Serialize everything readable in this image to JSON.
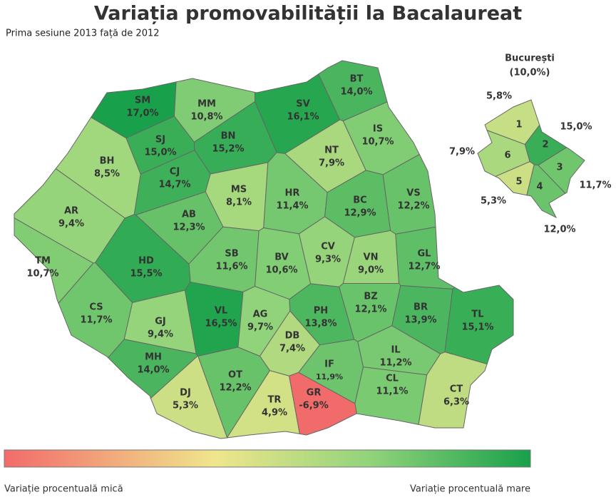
{
  "title": "Variația promovabilității la Bacalaureat",
  "subtitle": "Prima sesiune 2013 față de 2012",
  "counties": [
    {
      "code": "SM",
      "value": 17.0,
      "label": "17,0%"
    },
    {
      "code": "MM",
      "value": 10.8,
      "label": "10,8%"
    },
    {
      "code": "SV",
      "value": 16.1,
      "label": "16,1%"
    },
    {
      "code": "BT",
      "value": 14.0,
      "label": "14,0%"
    },
    {
      "code": "SJ",
      "value": 15.0,
      "label": "15,0%"
    },
    {
      "code": "BN",
      "value": 15.2,
      "label": "15,2%"
    },
    {
      "code": "IS",
      "value": 10.7,
      "label": "10,7%"
    },
    {
      "code": "BH",
      "value": 8.5,
      "label": "8,5%"
    },
    {
      "code": "CJ",
      "value": 14.7,
      "label": "14,7%"
    },
    {
      "code": "NT",
      "value": 7.9,
      "label": "7,9%"
    },
    {
      "code": "MS",
      "value": 8.1,
      "label": "8,1%"
    },
    {
      "code": "HR",
      "value": 11.4,
      "label": "11,4%"
    },
    {
      "code": "BC",
      "value": 12.9,
      "label": "12,9%"
    },
    {
      "code": "VS",
      "value": 12.2,
      "label": "12,2%"
    },
    {
      "code": "AR",
      "value": 9.4,
      "label": "9,4%"
    },
    {
      "code": "AB",
      "value": 12.3,
      "label": "12,3%"
    },
    {
      "code": "HD",
      "value": 15.5,
      "label": "15,5%"
    },
    {
      "code": "SB",
      "value": 11.6,
      "label": "11,6%"
    },
    {
      "code": "BV",
      "value": 10.6,
      "label": "10,6%"
    },
    {
      "code": "CV",
      "value": 9.3,
      "label": "9,3%"
    },
    {
      "code": "VN",
      "value": 9.0,
      "label": "9,0%"
    },
    {
      "code": "GL",
      "value": 12.7,
      "label": "12,7%"
    },
    {
      "code": "TM",
      "value": 10.7,
      "label": "10,7%"
    },
    {
      "code": "CS",
      "value": 11.7,
      "label": "11,7%"
    },
    {
      "code": "GJ",
      "value": 9.4,
      "label": "9,4%"
    },
    {
      "code": "VL",
      "value": 16.5,
      "label": "16,5%"
    },
    {
      "code": "AG",
      "value": 9.7,
      "label": "9,7%"
    },
    {
      "code": "DB",
      "value": 7.4,
      "label": "7,4%"
    },
    {
      "code": "PH",
      "value": 13.8,
      "label": "13,8%"
    },
    {
      "code": "BZ",
      "value": 12.1,
      "label": "12,1%"
    },
    {
      "code": "BR",
      "value": 13.9,
      "label": "13,9%"
    },
    {
      "code": "TL",
      "value": 15.1,
      "label": "15,1%"
    },
    {
      "code": "MH",
      "value": 14.0,
      "label": "14,0%"
    },
    {
      "code": "DJ",
      "value": 5.3,
      "label": "5,3%"
    },
    {
      "code": "OT",
      "value": 12.2,
      "label": "12,2%"
    },
    {
      "code": "TR",
      "value": 4.9,
      "label": "4,9%"
    },
    {
      "code": "GR",
      "value": -6.9,
      "label": "-6,9%"
    },
    {
      "code": "IF",
      "value": 11.9,
      "label": "11,9%"
    },
    {
      "code": "IL",
      "value": 11.2,
      "label": "11,2%"
    },
    {
      "code": "CL",
      "value": 11.1,
      "label": "11,1%"
    },
    {
      "code": "CT",
      "value": 6.3,
      "label": "6,3%"
    }
  ],
  "bucharest": {
    "name": "București",
    "value": 10.0,
    "label": "(10,0%)",
    "sectors": [
      {
        "code": "1",
        "value": 5.8,
        "label": "5,8%"
      },
      {
        "code": "2",
        "value": 15.0,
        "label": "15,0%"
      },
      {
        "code": "3",
        "value": 11.7,
        "label": "11,7%"
      },
      {
        "code": "4",
        "value": 12.0,
        "label": "12,0%"
      },
      {
        "code": "5",
        "value": 5.3,
        "label": "5,3%"
      },
      {
        "code": "6",
        "value": 7.9,
        "label": "7,9%"
      }
    ]
  },
  "legend": {
    "low": "Variație procentuală mică",
    "high": "Variație procentuală mare"
  }
}
